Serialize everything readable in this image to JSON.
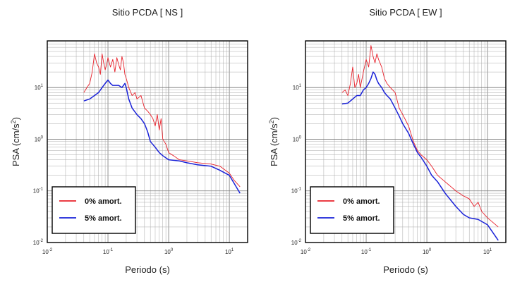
{
  "chart_data": [
    {
      "type": "line",
      "title": "Sitio PCDA [ NS ]",
      "xlabel": "Periodo (s)",
      "ylabel": "PSA (cm/s",
      "ylabel_sup": "2",
      "ylabel_end": ")",
      "xscale": "log",
      "yscale": "log",
      "xlim": [
        0.01,
        20
      ],
      "ylim": [
        0.01,
        80
      ],
      "grid": true,
      "legend_position": "bottom-left",
      "x_ticks": [
        {
          "base": "10",
          "exp": "-2",
          "value": 0.01
        },
        {
          "base": "10",
          "exp": "-1",
          "value": 0.1
        },
        {
          "base": "10",
          "exp": "0",
          "value": 1
        },
        {
          "base": "10",
          "exp": "1",
          "value": 10
        }
      ],
      "y_ticks": [
        {
          "base": "10",
          "exp": "-2",
          "value": 0.01
        },
        {
          "base": "10",
          "exp": "-1",
          "value": 0.1
        },
        {
          "base": "10",
          "exp": "0",
          "value": 1
        },
        {
          "base": "10",
          "exp": "1",
          "value": 10
        }
      ],
      "series": [
        {
          "name": "0% amort.",
          "color": "#e8202a",
          "x": [
            0.04,
            0.045,
            0.05,
            0.055,
            0.06,
            0.065,
            0.07,
            0.075,
            0.08,
            0.085,
            0.09,
            0.095,
            0.1,
            0.11,
            0.12,
            0.13,
            0.14,
            0.15,
            0.16,
            0.17,
            0.18,
            0.19,
            0.2,
            0.22,
            0.25,
            0.28,
            0.3,
            0.35,
            0.4,
            0.45,
            0.5,
            0.55,
            0.6,
            0.65,
            0.7,
            0.75,
            0.8,
            0.9,
            1.0,
            1.2,
            1.5,
            2.0,
            3.0,
            5.0,
            7.0,
            10.0,
            12.0,
            15.0
          ],
          "y": [
            8,
            10,
            12,
            20,
            45,
            30,
            25,
            18,
            45,
            30,
            22,
            28,
            38,
            25,
            35,
            20,
            38,
            28,
            22,
            40,
            30,
            18,
            15,
            10,
            7,
            8,
            6,
            7,
            4,
            3.5,
            3,
            2.5,
            1.8,
            3,
            1.5,
            2.5,
            1,
            0.8,
            0.55,
            0.48,
            0.4,
            0.38,
            0.35,
            0.33,
            0.3,
            0.22,
            0.16,
            0.12
          ]
        },
        {
          "name": "5% amort.",
          "color": "#1a22d8",
          "x": [
            0.04,
            0.05,
            0.06,
            0.07,
            0.08,
            0.09,
            0.1,
            0.11,
            0.12,
            0.13,
            0.15,
            0.17,
            0.19,
            0.2,
            0.22,
            0.25,
            0.3,
            0.35,
            0.4,
            0.45,
            0.5,
            0.6,
            0.7,
            0.8,
            1.0,
            1.5,
            2.0,
            3.0,
            5.0,
            7.0,
            10.0,
            15.0
          ],
          "y": [
            5.5,
            6,
            7,
            8,
            10,
            12,
            14,
            12,
            11,
            11,
            11,
            10,
            12,
            10,
            6,
            4,
            3,
            2.5,
            2,
            1.4,
            0.9,
            0.7,
            0.55,
            0.48,
            0.4,
            0.38,
            0.35,
            0.32,
            0.3,
            0.25,
            0.2,
            0.09
          ]
        }
      ]
    },
    {
      "type": "line",
      "title": "Sitio PCDA [ EW ]",
      "xlabel": "Periodo (s)",
      "ylabel": "PSA (cm/s",
      "ylabel_sup": "2",
      "ylabel_end": ")",
      "xscale": "log",
      "yscale": "log",
      "xlim": [
        0.01,
        20
      ],
      "ylim": [
        0.01,
        80
      ],
      "grid": true,
      "legend_position": "bottom-left",
      "x_ticks": [
        {
          "base": "10",
          "exp": "-2",
          "value": 0.01
        },
        {
          "base": "10",
          "exp": "-1",
          "value": 0.1
        },
        {
          "base": "10",
          "exp": "0",
          "value": 1
        },
        {
          "base": "10",
          "exp": "1",
          "value": 10
        }
      ],
      "y_ticks": [
        {
          "base": "10",
          "exp": "-2",
          "value": 0.01
        },
        {
          "base": "10",
          "exp": "-1",
          "value": 0.1
        },
        {
          "base": "10",
          "exp": "0",
          "value": 1
        },
        {
          "base": "10",
          "exp": "1",
          "value": 10
        }
      ],
      "series": [
        {
          "name": "0% amort.",
          "color": "#e8202a",
          "x": [
            0.04,
            0.045,
            0.05,
            0.055,
            0.06,
            0.065,
            0.07,
            0.075,
            0.08,
            0.09,
            0.1,
            0.11,
            0.12,
            0.13,
            0.14,
            0.15,
            0.16,
            0.18,
            0.2,
            0.22,
            0.25,
            0.3,
            0.35,
            0.4,
            0.5,
            0.6,
            0.7,
            0.8,
            1.0,
            1.2,
            1.5,
            2.0,
            2.5,
            3.0,
            4.0,
            5.0,
            6.0,
            7.0,
            8.0,
            10.0,
            12.0,
            15.0
          ],
          "y": [
            8,
            9,
            7,
            12,
            25,
            10,
            12,
            18,
            10,
            20,
            35,
            25,
            65,
            40,
            30,
            45,
            35,
            25,
            15,
            12,
            10,
            8,
            4,
            3,
            1.8,
            0.9,
            0.6,
            0.5,
            0.4,
            0.3,
            0.2,
            0.15,
            0.12,
            0.1,
            0.08,
            0.07,
            0.05,
            0.06,
            0.04,
            0.03,
            0.025,
            0.02
          ]
        },
        {
          "name": "5% amort.",
          "color": "#1a22d8",
          "x": [
            0.04,
            0.05,
            0.06,
            0.07,
            0.08,
            0.09,
            0.1,
            0.11,
            0.12,
            0.13,
            0.14,
            0.15,
            0.16,
            0.18,
            0.2,
            0.22,
            0.25,
            0.3,
            0.35,
            0.4,
            0.5,
            0.6,
            0.7,
            0.8,
            1.0,
            1.2,
            1.5,
            2.0,
            3.0,
            4.0,
            5.0,
            7.0,
            10.0,
            15.0
          ],
          "y": [
            4.8,
            5,
            6,
            7,
            7,
            9,
            10,
            12,
            15,
            20,
            18,
            14,
            12,
            10,
            8,
            7,
            6,
            4,
            2.8,
            2,
            1.3,
            0.8,
            0.55,
            0.45,
            0.3,
            0.2,
            0.15,
            0.09,
            0.05,
            0.035,
            0.03,
            0.028,
            0.022,
            0.011
          ]
        }
      ]
    }
  ]
}
